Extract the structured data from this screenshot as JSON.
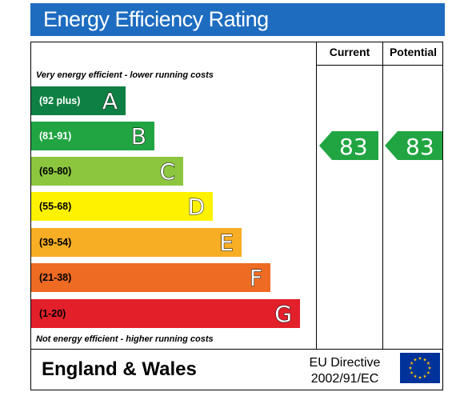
{
  "title": "Energy Efficiency Rating",
  "columns": {
    "current": "Current",
    "potential": "Potential"
  },
  "captions": {
    "top": "Very energy efficient - lower running costs",
    "bottom": "Not energy efficient - higher running costs"
  },
  "bands": [
    {
      "letter": "A",
      "range": "(92 plus)",
      "color": "#0f8043"
    },
    {
      "letter": "B",
      "range": "(81-91)",
      "color": "#21a542"
    },
    {
      "letter": "C",
      "range": "(69-80)",
      "color": "#8cc63f"
    },
    {
      "letter": "D",
      "range": "(55-68)",
      "color": "#fff200"
    },
    {
      "letter": "E",
      "range": "(39-54)",
      "color": "#f7ad24"
    },
    {
      "letter": "F",
      "range": "(21-38)",
      "color": "#ee6b23"
    },
    {
      "letter": "G",
      "range": "(1-20)",
      "color": "#e3202a"
    }
  ],
  "ratings": {
    "current": "83",
    "potential": "83",
    "arrow_color": "#21a542"
  },
  "footer": {
    "country": "England & Wales",
    "directive_line1": "EU Directive",
    "directive_line2": "2002/91/EC"
  },
  "colors": {
    "title_bar": "#1d6cc0",
    "eu_flag_blue": "#003399",
    "eu_flag_stars": "#ffcc00"
  }
}
